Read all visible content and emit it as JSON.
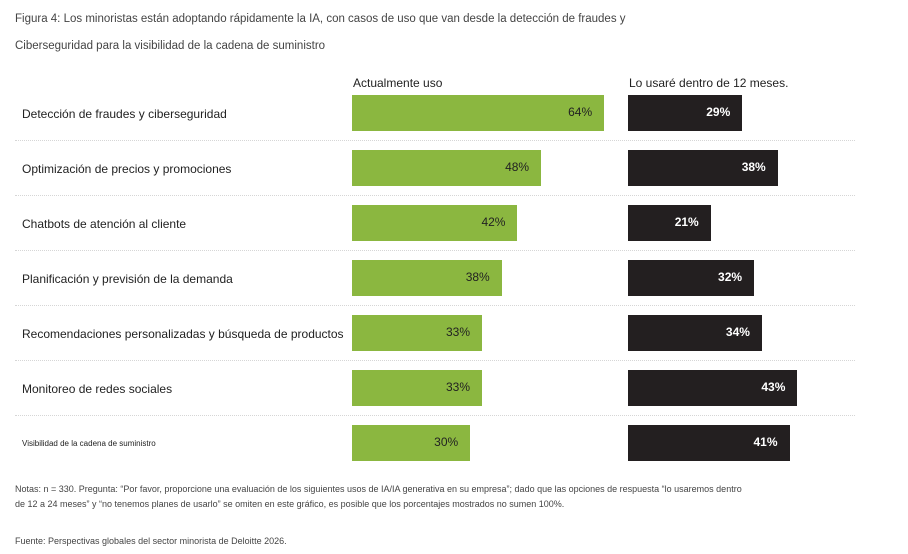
{
  "chart_data": {
    "type": "bar",
    "orientation": "horizontal",
    "title": "Figura 4: Los minoristas están adoptando rápidamente la IA, con casos de uso que van desde la detección de fraudes y",
    "title_line2": "Ciberseguridad para la visibilidad de la cadena de suministro",
    "categories": [
      "Detección de fraudes y ciberseguridad",
      "Optimización de precios y promociones",
      "Chatbots de atención al cliente",
      "Planificación y previsión de la demanda",
      "Recomendaciones personalizadas y búsqueda de productos",
      "Monitoreo de redes sociales",
      "Visibilidad de la cadena de suministro"
    ],
    "series": [
      {
        "name": "Actualmente uso",
        "color": "#8bb740",
        "values": [
          64,
          48,
          42,
          38,
          33,
          33,
          30
        ],
        "labels": [
          "64%",
          "48%",
          "42%",
          "38%",
          "33%",
          "33%",
          "30%"
        ]
      },
      {
        "name": "Lo usaré dentro de 12 meses.",
        "color": "#231f20",
        "values": [
          29,
          38,
          21,
          32,
          34,
          43,
          41
        ],
        "labels": [
          "29%",
          "38%",
          "21%",
          "32%",
          "34%",
          "43%",
          "41%"
        ]
      }
    ],
    "xlabel": "",
    "ylabel": "",
    "xlim": [
      0,
      100
    ],
    "grid": false,
    "legend": "top (column headers)"
  },
  "notes": {
    "line1": "Notas: n = 330. Pregunta: “Por favor, proporcione una evaluación de los siguientes usos de IA/IA generativa en su empresa”; dado que las opciones de respuesta “lo usaremos dentro",
    "line2": "de 12 a 24 meses” y “no tenemos planes de usarlo” se omiten en este gráfico, es posible que los porcentajes mostrados no sumen 100%.",
    "source": "Fuente: Perspectivas globales del sector minorista de Deloitte 2026."
  }
}
